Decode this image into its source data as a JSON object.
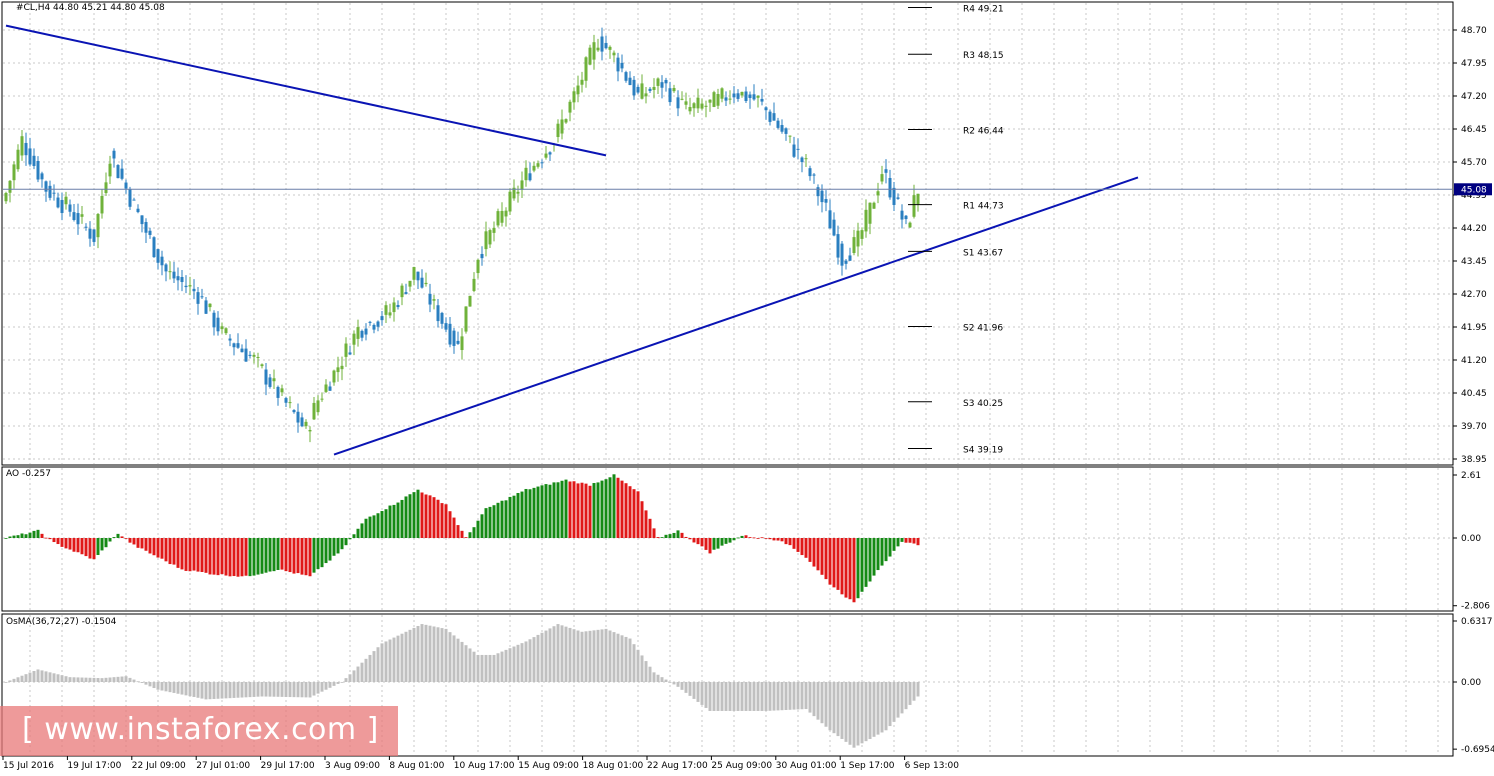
{
  "colors": {
    "bull_candle": "#6fb23a",
    "bear_candle": "#2a7fc0",
    "trendline": "#0a14b4",
    "ao_up": "#158a15",
    "ao_down": "#e01818",
    "osma": "#c0c0c0",
    "grid": "#c8c8c8",
    "price_label_bg": "#000080"
  },
  "main_panel": {
    "header": "#CL,H4  44.80 45.21 44.80 45.08",
    "current_price": "45.08",
    "y_ticks": [
      "48.70",
      "47.95",
      "47.20",
      "46.45",
      "45.70",
      "44.95",
      "44.20",
      "43.45",
      "42.70",
      "41.95",
      "41.20",
      "40.45",
      "39.70",
      "38.95"
    ],
    "pivots": [
      {
        "label": "R4 49.21",
        "value": 49.21
      },
      {
        "label": "R3 48.15",
        "value": 48.15
      },
      {
        "label": "R2 46.44",
        "value": 46.44
      },
      {
        "label": "R1 44.73",
        "value": 44.73
      },
      {
        "label": "S1 43.67",
        "value": 43.67
      },
      {
        "label": "S2 41.96",
        "value": 41.96
      },
      {
        "label": "S3 40.25",
        "value": 40.25
      },
      {
        "label": "S4 39.19",
        "value": 39.19
      }
    ]
  },
  "ao_panel": {
    "header": "AO -0.257",
    "y_ticks": [
      "2.61",
      "0.00",
      "-2.806"
    ]
  },
  "osma_panel": {
    "header": "OsMA(36,72,27) -0.1504",
    "y_ticks": [
      "0.6317",
      "0.00",
      "-0.6954"
    ]
  },
  "x_axis": {
    "labels": [
      "15 Jul 2016",
      "19 Jul 17:00",
      "22 Jul 09:00",
      "27 Jul 01:00",
      "29 Jul 17:00",
      "3 Aug 09:00",
      "8 Aug 01:00",
      "10 Aug 17:00",
      "15 Aug 09:00",
      "18 Aug 01:00",
      "22 Aug 17:00",
      "25 Aug 09:00",
      "30 Aug 01:00",
      "1 Sep 17:00",
      "6 Sep 13:00"
    ]
  },
  "watermark": "[ www.instaforex.com ]",
  "chart_data": {
    "type": "candlestick",
    "symbol": "#CL",
    "timeframe": "H4",
    "ohlc_last": {
      "open": 44.8,
      "high": 45.21,
      "low": 44.8,
      "close": 45.08
    },
    "price_anchors": [
      {
        "bar": 0,
        "price": 45.0
      },
      {
        "bar": 4,
        "price": 46.2
      },
      {
        "bar": 10,
        "price": 45.1
      },
      {
        "bar": 16,
        "price": 44.6
      },
      {
        "bar": 22,
        "price": 44.0
      },
      {
        "bar": 26,
        "price": 45.9
      },
      {
        "bar": 34,
        "price": 44.3
      },
      {
        "bar": 40,
        "price": 43.2
      },
      {
        "bar": 48,
        "price": 42.7
      },
      {
        "bar": 54,
        "price": 41.8
      },
      {
        "bar": 62,
        "price": 41.2
      },
      {
        "bar": 70,
        "price": 40.2
      },
      {
        "bar": 75,
        "price": 39.6
      },
      {
        "bar": 78,
        "price": 40.3
      },
      {
        "bar": 82,
        "price": 40.9
      },
      {
        "bar": 88,
        "price": 41.9
      },
      {
        "bar": 96,
        "price": 42.3
      },
      {
        "bar": 102,
        "price": 43.2
      },
      {
        "bar": 107,
        "price": 42.4
      },
      {
        "bar": 113,
        "price": 41.5
      },
      {
        "bar": 118,
        "price": 43.6
      },
      {
        "bar": 124,
        "price": 44.5
      },
      {
        "bar": 130,
        "price": 45.4
      },
      {
        "bar": 137,
        "price": 46.2
      },
      {
        "bar": 143,
        "price": 47.4
      },
      {
        "bar": 148,
        "price": 48.5
      },
      {
        "bar": 152,
        "price": 48.1
      },
      {
        "bar": 158,
        "price": 47.2
      },
      {
        "bar": 164,
        "price": 47.5
      },
      {
        "bar": 170,
        "price": 46.9
      },
      {
        "bar": 176,
        "price": 47.0
      },
      {
        "bar": 182,
        "price": 47.3
      },
      {
        "bar": 188,
        "price": 47.1
      },
      {
        "bar": 194,
        "price": 46.4
      },
      {
        "bar": 200,
        "price": 45.6
      },
      {
        "bar": 205,
        "price": 44.6
      },
      {
        "bar": 209,
        "price": 43.5
      },
      {
        "bar": 213,
        "price": 43.9
      },
      {
        "bar": 216,
        "price": 44.6
      },
      {
        "bar": 219,
        "price": 45.5
      },
      {
        "bar": 222,
        "price": 44.9
      },
      {
        "bar": 225,
        "price": 44.2
      },
      {
        "bar": 228,
        "price": 45.08
      }
    ],
    "trendlines": [
      {
        "name": "resistance",
        "from": {
          "bar": 0,
          "price": 48.8
        },
        "to": {
          "bar": 150,
          "price": 45.85
        }
      },
      {
        "name": "support",
        "from": {
          "bar": 82,
          "price": 39.05
        },
        "to": {
          "bar": 283,
          "price": 45.35
        }
      }
    ],
    "ao_anchors": [
      {
        "bar": 0,
        "value": 0.0
      },
      {
        "bar": 8,
        "value": 0.3
      },
      {
        "bar": 12,
        "value": -0.2
      },
      {
        "bar": 22,
        "value": -0.9
      },
      {
        "bar": 28,
        "value": 0.2
      },
      {
        "bar": 32,
        "value": -0.3
      },
      {
        "bar": 44,
        "value": -1.3
      },
      {
        "bar": 52,
        "value": -1.5
      },
      {
        "bar": 60,
        "value": -1.6
      },
      {
        "bar": 68,
        "value": -1.3
      },
      {
        "bar": 76,
        "value": -1.6
      },
      {
        "bar": 84,
        "value": -0.5
      },
      {
        "bar": 90,
        "value": 0.8
      },
      {
        "bar": 97,
        "value": 1.4
      },
      {
        "bar": 103,
        "value": 2.0
      },
      {
        "bar": 110,
        "value": 1.4
      },
      {
        "bar": 115,
        "value": 0.0
      },
      {
        "bar": 120,
        "value": 1.2
      },
      {
        "bar": 130,
        "value": 2.0
      },
      {
        "bar": 140,
        "value": 2.4
      },
      {
        "bar": 146,
        "value": 2.2
      },
      {
        "bar": 152,
        "value": 2.6
      },
      {
        "bar": 158,
        "value": 1.9
      },
      {
        "bar": 163,
        "value": 0.0
      },
      {
        "bar": 168,
        "value": 0.3
      },
      {
        "bar": 176,
        "value": -0.6
      },
      {
        "bar": 184,
        "value": 0.1
      },
      {
        "bar": 194,
        "value": -0.1
      },
      {
        "bar": 200,
        "value": -0.8
      },
      {
        "bar": 206,
        "value": -1.9
      },
      {
        "bar": 212,
        "value": -2.7
      },
      {
        "bar": 218,
        "value": -1.3
      },
      {
        "bar": 224,
        "value": -0.2
      },
      {
        "bar": 228,
        "value": -0.26
      }
    ],
    "osma_anchors": [
      {
        "bar": 0,
        "value": 0.0
      },
      {
        "bar": 8,
        "value": 0.13
      },
      {
        "bar": 16,
        "value": 0.05
      },
      {
        "bar": 24,
        "value": 0.04
      },
      {
        "bar": 30,
        "value": 0.06
      },
      {
        "bar": 38,
        "value": -0.08
      },
      {
        "bar": 50,
        "value": -0.18
      },
      {
        "bar": 64,
        "value": -0.15
      },
      {
        "bar": 76,
        "value": -0.16
      },
      {
        "bar": 84,
        "value": 0.0
      },
      {
        "bar": 94,
        "value": 0.4
      },
      {
        "bar": 104,
        "value": 0.6
      },
      {
        "bar": 110,
        "value": 0.55
      },
      {
        "bar": 118,
        "value": 0.28
      },
      {
        "bar": 122,
        "value": 0.28
      },
      {
        "bar": 130,
        "value": 0.42
      },
      {
        "bar": 138,
        "value": 0.6
      },
      {
        "bar": 144,
        "value": 0.52
      },
      {
        "bar": 150,
        "value": 0.55
      },
      {
        "bar": 156,
        "value": 0.45
      },
      {
        "bar": 162,
        "value": 0.1
      },
      {
        "bar": 168,
        "value": -0.05
      },
      {
        "bar": 176,
        "value": -0.3
      },
      {
        "bar": 190,
        "value": -0.3
      },
      {
        "bar": 200,
        "value": -0.28
      },
      {
        "bar": 206,
        "value": -0.5
      },
      {
        "bar": 212,
        "value": -0.68
      },
      {
        "bar": 220,
        "value": -0.5
      },
      {
        "bar": 228,
        "value": -0.15
      }
    ],
    "y_range_main": [
      38.95,
      48.7
    ],
    "y_range_ao": [
      -2.806,
      2.61
    ],
    "y_range_osma": [
      -0.6954,
      0.6317
    ]
  }
}
